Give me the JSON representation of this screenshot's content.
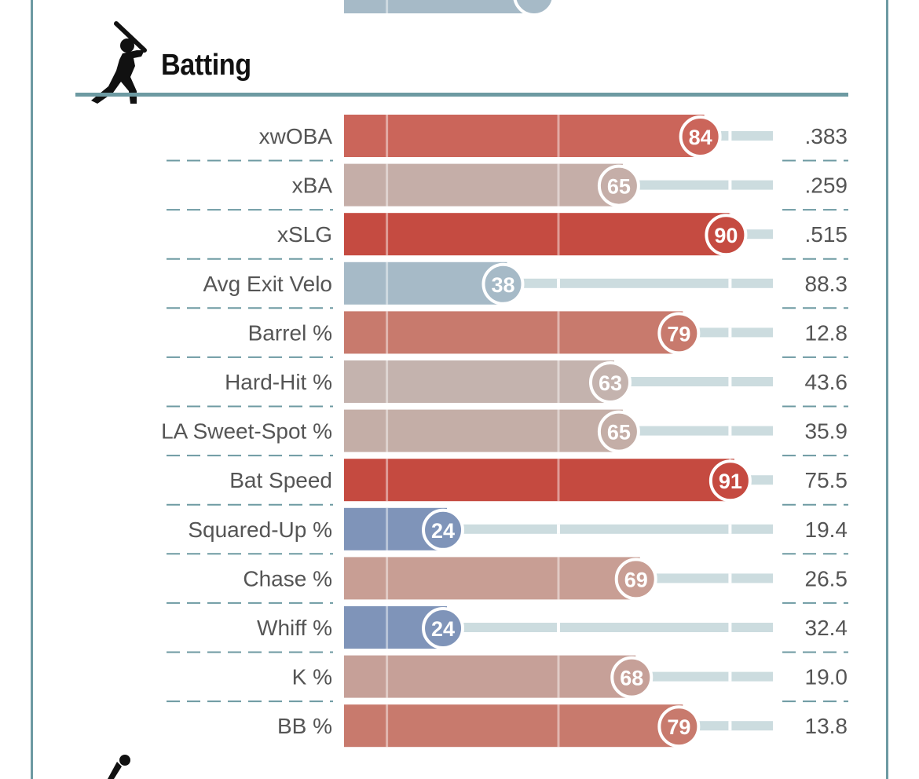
{
  "section": {
    "title": "Batting"
  },
  "chart_data": {
    "type": "bar",
    "title": "Batting",
    "xlim": [
      0,
      100
    ],
    "categories": [
      "xwOBA",
      "xBA",
      "xSLG",
      "Avg Exit Velo",
      "Barrel %",
      "Hard-Hit %",
      "LA Sweet-Spot %",
      "Bat Speed",
      "Squared-Up %",
      "Chase %",
      "Whiff %",
      "K %",
      "BB %"
    ],
    "percentiles": [
      84,
      65,
      90,
      38,
      79,
      63,
      65,
      91,
      24,
      69,
      24,
      68,
      79
    ],
    "stat_values": [
      ".383",
      ".259",
      ".515",
      "88.3",
      "12.8",
      "43.6",
      "35.9",
      "75.5",
      "19.4",
      "26.5",
      "32.4",
      "19.0",
      "13.8"
    ],
    "colors": [
      "#cb655a",
      "#c5aea8",
      "#c54b41",
      "#a6bac7",
      "#c87a6d",
      "#c4b3ae",
      "#c4aea7",
      "#c54a40",
      "#7f94b9",
      "#c89e94",
      "#7f94b9",
      "#c6a098",
      "#c87a6d"
    ]
  }
}
